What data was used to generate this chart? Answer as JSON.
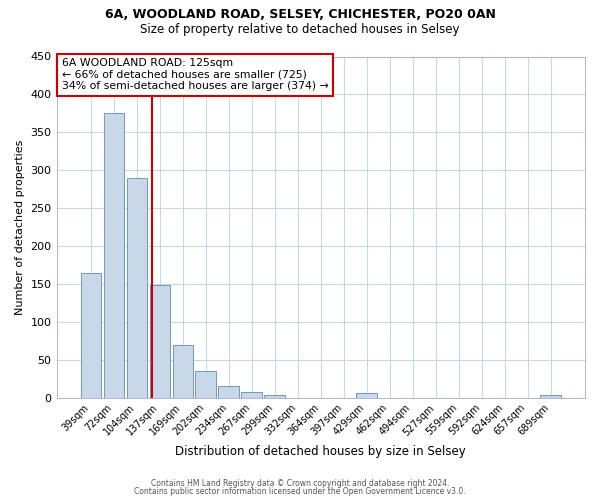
{
  "title1": "6A, WOODLAND ROAD, SELSEY, CHICHESTER, PO20 0AN",
  "title2": "Size of property relative to detached houses in Selsey",
  "xlabel": "Distribution of detached houses by size in Selsey",
  "ylabel": "Number of detached properties",
  "bar_labels": [
    "39sqm",
    "72sqm",
    "104sqm",
    "137sqm",
    "169sqm",
    "202sqm",
    "234sqm",
    "267sqm",
    "299sqm",
    "332sqm",
    "364sqm",
    "397sqm",
    "429sqm",
    "462sqm",
    "494sqm",
    "527sqm",
    "559sqm",
    "592sqm",
    "624sqm",
    "657sqm",
    "689sqm"
  ],
  "bar_values": [
    165,
    375,
    290,
    148,
    70,
    35,
    15,
    7,
    4,
    0,
    0,
    0,
    6,
    0,
    0,
    0,
    0,
    0,
    0,
    0,
    3
  ],
  "bar_color": "#c8d8e8",
  "bar_edgecolor": "#5b8db8",
  "background_color": "#ffffff",
  "grid_color": "#c8d8e8",
  "vline_color": "#cc0000",
  "annotation_title": "6A WOODLAND ROAD: 125sqm",
  "annotation_line1": "← 66% of detached houses are smaller (725)",
  "annotation_line2": "34% of semi-detached houses are larger (374) →",
  "annotation_box_color": "#ffffff",
  "annotation_box_edgecolor": "#cc0000",
  "ylim": [
    0,
    450
  ],
  "yticks": [
    0,
    50,
    100,
    150,
    200,
    250,
    300,
    350,
    400,
    450
  ],
  "footer1": "Contains HM Land Registry data © Crown copyright and database right 2024.",
  "footer2": "Contains public sector information licensed under the Open Government Licence v3.0."
}
